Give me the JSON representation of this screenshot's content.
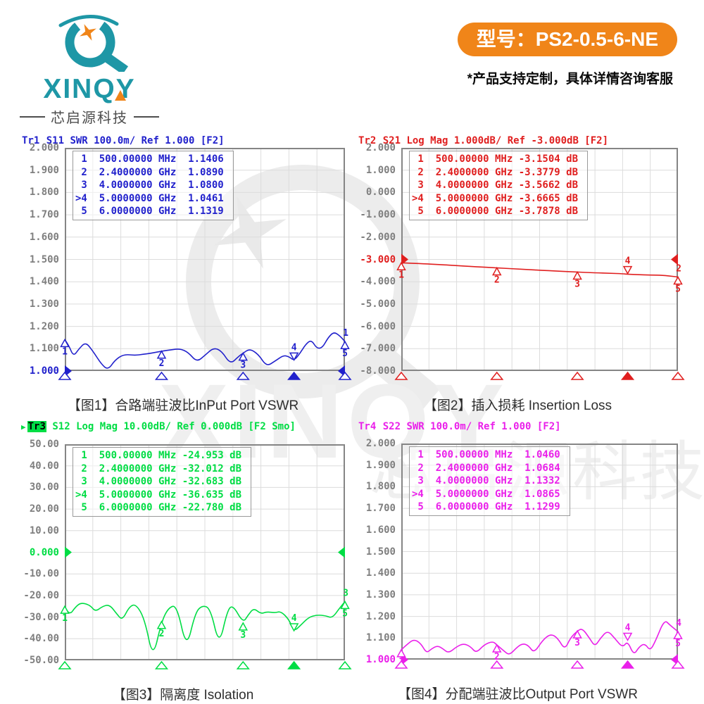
{
  "brand": {
    "logo_text": "XINQY",
    "logo_subtext": "芯启源科技",
    "model_badge": "型号：PS2-0.5-6-NE",
    "note": "*产品支持定制，具体详情咨询客服",
    "colors": {
      "teal": "#1e97a6",
      "orange": "#f08519"
    }
  },
  "icons": {
    "active_trace_arrow": "▶"
  },
  "chart_data": [
    {
      "type": "line",
      "id": "tr1-s11-input-vswr",
      "header": {
        "name": "Tr1",
        "rest": " S11 SWR 100.0m/ Ref 1.000 [F2]",
        "active": false
      },
      "color": "#2121cc",
      "caption": "【图1】合路端驻波比InPut Port VSWR",
      "xlim_ghz": [
        0.5,
        6.0
      ],
      "ylim": [
        1.0,
        2.0
      ],
      "yticks": [
        "2.000",
        "1.900",
        "1.800",
        "1.700",
        "1.600",
        "1.500",
        "1.400",
        "1.300",
        "1.200",
        "1.100",
        "1.000"
      ],
      "ref_tick_index": 10,
      "ref_value": 1.0,
      "trace_id_label": "1",
      "grid": true,
      "markers": [
        {
          "n": "1",
          "ghz": 0.5,
          "y": 1.1406,
          "active": false
        },
        {
          "n": "2",
          "ghz": 2.4,
          "y": 1.089,
          "active": false
        },
        {
          "n": "3",
          "ghz": 4.0,
          "y": 1.08,
          "active": false
        },
        {
          "n": "4",
          "ghz": 5.0,
          "y": 1.0461,
          "active": true
        },
        {
          "n": "5",
          "ghz": 6.0,
          "y": 1.1319,
          "active": false
        }
      ],
      "marker_table": [
        " 1  500.00000 MHz  1.1406",
        " 2  2.4000000 GHz  1.0890",
        " 3  4.0000000 GHz  1.0800",
        ">4  5.0000000 GHz  1.0461",
        " 5  6.0000000 GHz  1.1319"
      ],
      "trace": {
        "x_ghz": [
          0.5,
          0.58,
          0.67,
          0.78,
          0.91,
          1.05,
          1.22,
          1.35,
          1.49,
          1.66,
          1.88,
          2.04,
          2.21,
          2.4,
          2.59,
          2.76,
          2.92,
          3.09,
          3.25,
          3.42,
          3.58,
          3.75,
          3.91,
          4.0,
          4.13,
          4.3,
          4.46,
          4.63,
          4.79,
          4.9,
          5.0,
          5.12,
          5.23,
          5.34,
          5.45,
          5.56,
          5.67,
          5.78,
          5.89,
          6.0
        ],
        "y": [
          1.141,
          1.115,
          1.065,
          1.1,
          1.13,
          1.09,
          1.03,
          1.005,
          1.05,
          1.075,
          1.07,
          1.075,
          1.08,
          1.089,
          1.095,
          1.1,
          1.085,
          1.04,
          1.07,
          1.105,
          1.09,
          1.03,
          1.065,
          1.08,
          1.1,
          1.075,
          1.02,
          1.045,
          1.07,
          1.065,
          1.046,
          1.08,
          1.12,
          1.14,
          1.1,
          1.105,
          1.15,
          1.175,
          1.16,
          1.132
        ]
      }
    },
    {
      "type": "line",
      "id": "tr2-s21-insertion-loss",
      "header": {
        "name": "Tr2",
        "rest": " S21 Log Mag 1.000dB/ Ref -3.000dB [F2]",
        "active": false
      },
      "color": "#e01f1f",
      "caption": "【图2】插入损耗 Insertion Loss",
      "xlim_ghz": [
        0.5,
        6.0
      ],
      "ylim": [
        -8.0,
        2.0
      ],
      "yticks": [
        "2.000",
        "1.000",
        "0.000",
        "-1.000",
        "-2.000",
        "-3.000",
        "-4.000",
        "-5.000",
        "-6.000",
        "-7.000",
        "-8.000"
      ],
      "ref_tick_index": 5,
      "ref_value": -3.0,
      "trace_id_label": "2",
      "grid": true,
      "markers": [
        {
          "n": "1",
          "ghz": 0.5,
          "y": -3.1504,
          "active": false
        },
        {
          "n": "2",
          "ghz": 2.4,
          "y": -3.3779,
          "active": false
        },
        {
          "n": "3",
          "ghz": 4.0,
          "y": -3.5662,
          "active": false
        },
        {
          "n": "4",
          "ghz": 5.0,
          "y": -3.6665,
          "active": true
        },
        {
          "n": "5",
          "ghz": 6.0,
          "y": -3.7878,
          "active": false
        }
      ],
      "marker_table": [
        " 1  500.00000 MHz -3.1504 dB",
        " 2  2.4000000 GHz -3.3779 dB",
        " 3  4.0000000 GHz -3.5662 dB",
        ">4  5.0000000 GHz -3.6665 dB",
        " 5  6.0000000 GHz -3.7878 dB"
      ],
      "trace": {
        "x_ghz": [
          0.5,
          1.0,
          1.5,
          2.0,
          2.4,
          2.9,
          3.4,
          4.0,
          4.35,
          4.65,
          4.9,
          5.0,
          5.2,
          5.45,
          5.7,
          5.9,
          6.0
        ],
        "y": [
          -3.15,
          -3.2,
          -3.26,
          -3.33,
          -3.378,
          -3.44,
          -3.5,
          -3.566,
          -3.6,
          -3.62,
          -3.64,
          -3.667,
          -3.68,
          -3.7,
          -3.71,
          -3.76,
          -3.788
        ]
      }
    },
    {
      "type": "line",
      "id": "tr3-s12-isolation",
      "header": {
        "name": "Tr3",
        "rest": " S12 Log Mag 10.00dB/ Ref 0.000dB [F2 Smo]",
        "active": true
      },
      "color": "#00dd44",
      "caption": "【图3】隔离度 Isolation",
      "xlim_ghz": [
        0.5,
        6.0
      ],
      "ylim": [
        -50.0,
        50.0
      ],
      "yticks": [
        "50.00",
        "40.00",
        "30.00",
        "20.00",
        "10.00",
        "0.000",
        "-10.00",
        "-20.00",
        "-30.00",
        "-40.00",
        "-50.00"
      ],
      "ref_tick_index": 5,
      "ref_value": 0.0,
      "trace_id_label": "3",
      "grid": true,
      "markers": [
        {
          "n": "1",
          "ghz": 0.5,
          "y": -24.953,
          "active": false
        },
        {
          "n": "2",
          "ghz": 2.4,
          "y": -32.012,
          "active": false
        },
        {
          "n": "3",
          "ghz": 4.0,
          "y": -32.683,
          "active": false
        },
        {
          "n": "4",
          "ghz": 5.0,
          "y": -36.635,
          "active": true
        },
        {
          "n": "5",
          "ghz": 6.0,
          "y": -22.78,
          "active": false
        }
      ],
      "marker_table": [
        " 1  500.00000 MHz -24.953 dB",
        " 2  2.4000000 GHz -32.012 dB",
        " 3  4.0000000 GHz -32.683 dB",
        ">4  5.0000000 GHz -36.635 dB",
        " 5  6.0000000 GHz -22.780 dB"
      ],
      "trace": {
        "x_ghz": [
          0.5,
          0.58,
          0.72,
          0.83,
          1.0,
          1.1,
          1.24,
          1.38,
          1.52,
          1.63,
          1.77,
          1.9,
          2.07,
          2.23,
          2.4,
          2.54,
          2.7,
          2.89,
          3.06,
          3.2,
          3.36,
          3.53,
          3.69,
          3.8,
          4.0,
          4.1,
          4.21,
          4.35,
          4.46,
          4.63,
          4.74,
          4.9,
          5.0,
          5.12,
          5.29,
          5.45,
          5.62,
          5.75,
          5.89,
          6.0
        ],
        "y": [
          -24.95,
          -29.5,
          -25.0,
          -23.3,
          -24.5,
          -27.5,
          -25.0,
          -24.2,
          -28.5,
          -31.5,
          -25.0,
          -24.0,
          -31.0,
          -49.5,
          -32.0,
          -25.5,
          -24.5,
          -45.0,
          -28.0,
          -24.5,
          -26.0,
          -43.5,
          -27.0,
          -24.3,
          -32.7,
          -29.0,
          -25.8,
          -28.5,
          -27.5,
          -28.0,
          -27.3,
          -31.0,
          -36.6,
          -34.0,
          -30.0,
          -29.0,
          -29.3,
          -30.5,
          -26.0,
          -22.8
        ]
      }
    },
    {
      "type": "line",
      "id": "tr4-s22-output-vswr",
      "header": {
        "name": "Tr4",
        "rest": " S22 SWR 100.0m/ Ref 1.000 [F2]",
        "active": false
      },
      "color": "#ea20ea",
      "caption": "【图4】分配端驻波比Output Port VSWR",
      "xlim_ghz": [
        0.5,
        6.0
      ],
      "ylim": [
        1.0,
        2.0
      ],
      "yticks": [
        "2.000",
        "1.900",
        "1.800",
        "1.700",
        "1.600",
        "1.500",
        "1.400",
        "1.300",
        "1.200",
        "1.100",
        "1.000"
      ],
      "ref_tick_index": 10,
      "ref_value": 1.0,
      "trace_id_label": "4",
      "grid": true,
      "markers": [
        {
          "n": "1",
          "ghz": 0.5,
          "y": 1.046,
          "active": false
        },
        {
          "n": "2",
          "ghz": 2.4,
          "y": 1.0684,
          "active": false
        },
        {
          "n": "3",
          "ghz": 4.0,
          "y": 1.1332,
          "active": false
        },
        {
          "n": "4",
          "ghz": 5.0,
          "y": 1.0865,
          "active": true
        },
        {
          "n": "5",
          "ghz": 6.0,
          "y": 1.1299,
          "active": false
        }
      ],
      "marker_table": [
        " 1  500.00000 MHz  1.0460",
        " 2  2.4000000 GHz  1.0684",
        " 3  4.0000000 GHz  1.1332",
        ">4  5.0000000 GHz  1.0865",
        " 5  6.0000000 GHz  1.1299"
      ],
      "trace": {
        "x_ghz": [
          0.5,
          0.61,
          0.75,
          0.89,
          1.0,
          1.1,
          1.22,
          1.33,
          1.44,
          1.6,
          1.74,
          1.88,
          1.99,
          2.15,
          2.32,
          2.4,
          2.54,
          2.65,
          2.81,
          2.92,
          3.03,
          3.14,
          3.31,
          3.47,
          3.61,
          3.75,
          3.86,
          4.0,
          4.1,
          4.24,
          4.35,
          4.46,
          4.6,
          4.74,
          4.9,
          5.0,
          5.12,
          5.23,
          5.34,
          5.45,
          5.56,
          5.73,
          5.84,
          6.0
        ],
        "y": [
          1.046,
          1.07,
          1.095,
          1.075,
          1.03,
          1.05,
          1.065,
          1.05,
          1.03,
          1.06,
          1.075,
          1.06,
          1.03,
          1.07,
          1.085,
          1.068,
          1.04,
          1.02,
          1.06,
          1.075,
          1.065,
          1.03,
          1.09,
          1.12,
          1.1,
          1.045,
          1.1,
          1.133,
          1.145,
          1.1,
          1.06,
          1.1,
          1.135,
          1.1,
          1.055,
          1.087,
          1.02,
          1.06,
          1.075,
          1.04,
          1.09,
          1.185,
          1.16,
          1.13
        ]
      }
    }
  ]
}
